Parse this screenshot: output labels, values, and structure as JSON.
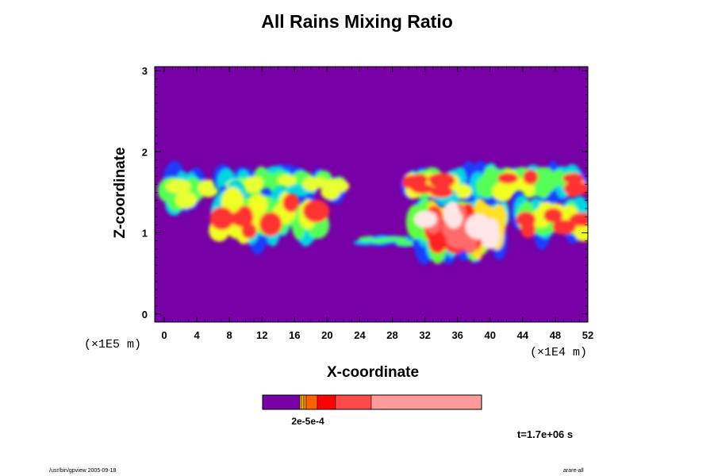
{
  "chart_data": {
    "type": "heatmap",
    "title": "All Rains Mixing Ratio",
    "xlabel": "X-coordinate",
    "ylabel": "Z-coordinate",
    "x_scale_label": "(×1E4 m)",
    "y_scale_label": "(×1E5 m)",
    "x_ticks": [
      "0",
      "4",
      "8",
      "12",
      "16",
      "20",
      "24",
      "28",
      "32",
      "36",
      "40",
      "44",
      "48",
      "52"
    ],
    "y_ticks": [
      "0",
      "1",
      "2",
      "3"
    ],
    "xlim": [
      0,
      52
    ],
    "ylim": [
      -0.1,
      3.05
    ],
    "background_value_color": "#7700a6",
    "colorbar": {
      "tick_label": "2e-5e-4",
      "colors": [
        "#7700a6",
        "#ffb000",
        "#ff9000",
        "#ff6000",
        "#ff0000",
        "#ff4a4a",
        "#ff9a9a"
      ]
    },
    "rain_regions": [
      {
        "x_range": [
          0,
          6
        ],
        "z_range": [
          1.3,
          1.7
        ],
        "intensity": "medium"
      },
      {
        "x_range": [
          6,
          23
        ],
        "z_range": [
          1.45,
          1.75
        ],
        "intensity": "medium"
      },
      {
        "x_range": [
          6,
          20
        ],
        "z_range": [
          0.95,
          1.45
        ],
        "intensity": "medium-high"
      },
      {
        "x_range": [
          24,
          31
        ],
        "z_range": [
          0.85,
          0.95
        ],
        "intensity": "low"
      },
      {
        "x_range": [
          30,
          42
        ],
        "z_range": [
          0.8,
          1.35
        ],
        "intensity": "high"
      },
      {
        "x_range": [
          29,
          52
        ],
        "z_range": [
          1.45,
          1.75
        ],
        "intensity": "medium-high"
      },
      {
        "x_range": [
          43,
          52
        ],
        "z_range": [
          0.95,
          1.35
        ],
        "intensity": "medium-high"
      }
    ]
  },
  "time_label": "t=1.7e+06 s",
  "footer_left": "/usr/bin/gpview 2005-09-18",
  "footer_right": "arare-all"
}
